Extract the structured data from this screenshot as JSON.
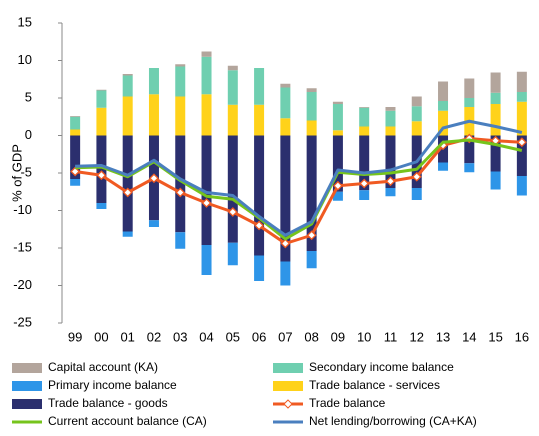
{
  "chart_data": {
    "type": "bar",
    "y_label": "% of GDP",
    "categories": [
      "99",
      "00",
      "01",
      "02",
      "03",
      "04",
      "05",
      "06",
      "07",
      "08",
      "09",
      "10",
      "11",
      "12",
      "13",
      "14",
      "15",
      "16"
    ],
    "ylim": [
      -25,
      15
    ],
    "yticks": [
      -25,
      -20,
      -15,
      -10,
      -5,
      0,
      5,
      10,
      15
    ],
    "series": [
      {
        "name": "Capital account (KA)",
        "type": "bar",
        "color": "#b3a59c",
        "values": [
          0.1,
          0.1,
          0.2,
          0,
          0.3,
          0.7,
          0.6,
          0,
          0.5,
          0.5,
          0.3,
          0.1,
          0.5,
          1.3,
          2.6,
          2.6,
          2.7,
          2.7
        ]
      },
      {
        "name": "Secondary income balance",
        "type": "bar",
        "color": "#6fcfb0",
        "values": [
          1.7,
          2.3,
          2.8,
          3.5,
          4.0,
          5.0,
          4.6,
          4.9,
          4.1,
          3.8,
          3.5,
          2.5,
          2.1,
          2.0,
          1.3,
          1.2,
          1.5,
          1.3
        ]
      },
      {
        "name": "Primary income balance",
        "type": "bar",
        "color": "#2e95e8",
        "values": [
          -0.9,
          -0.8,
          -0.7,
          -0.9,
          -2.2,
          -4.0,
          -3.0,
          -3.4,
          -3.2,
          -2.3,
          -1.2,
          -1.3,
          -1.1,
          -1.6,
          -1.1,
          -1.2,
          -2.4,
          -2.6
        ]
      },
      {
        "name": "Trade balance - services",
        "type": "bar",
        "color": "#ffd21a",
        "values": [
          0.8,
          3.7,
          5.2,
          5.5,
          5.2,
          5.5,
          4.1,
          4.1,
          2.3,
          2.0,
          0.7,
          1.2,
          1.2,
          1.9,
          3.3,
          3.8,
          4.2,
          4.5
        ]
      },
      {
        "name": "Trade balance - goods",
        "type": "bar",
        "color": "#2b2f6e",
        "values": [
          -5.8,
          -9.0,
          -12.8,
          -11.3,
          -12.9,
          -14.6,
          -14.3,
          -16.0,
          -16.8,
          -15.4,
          -7.5,
          -7.3,
          -7.0,
          -7.0,
          -3.6,
          -3.7,
          -4.8,
          -5.4
        ]
      },
      {
        "name": "Trade balance",
        "type": "line",
        "marker": "diamond",
        "color": "#f05a22",
        "values": [
          -4.8,
          -5.3,
          -7.6,
          -5.7,
          -7.6,
          -9.0,
          -10.2,
          -12.0,
          -14.4,
          -13.3,
          -6.7,
          -6.4,
          -6.1,
          -5.5,
          -1.3,
          -0.4,
          -0.7,
          -0.9
        ]
      },
      {
        "name": "Current account balance (CA)",
        "type": "line",
        "color": "#76c41c",
        "values": [
          -4.3,
          -4.2,
          -5.5,
          -3.5,
          -6.0,
          -8.1,
          -8.5,
          -11.0,
          -13.8,
          -11.8,
          -4.9,
          -5.2,
          -5.0,
          -4.5,
          -0.9,
          -0.6,
          -1.2,
          -2.0
        ]
      },
      {
        "name": "Net lending/borrowing (CA+KA)",
        "type": "line",
        "color": "#4a7fbf",
        "values": [
          -4.1,
          -4.0,
          -5.3,
          -3.3,
          -5.8,
          -7.6,
          -8.0,
          -10.8,
          -13.3,
          -11.5,
          -4.6,
          -5.0,
          -4.6,
          -3.5,
          1.0,
          1.9,
          1.2,
          0.4
        ]
      }
    ]
  }
}
